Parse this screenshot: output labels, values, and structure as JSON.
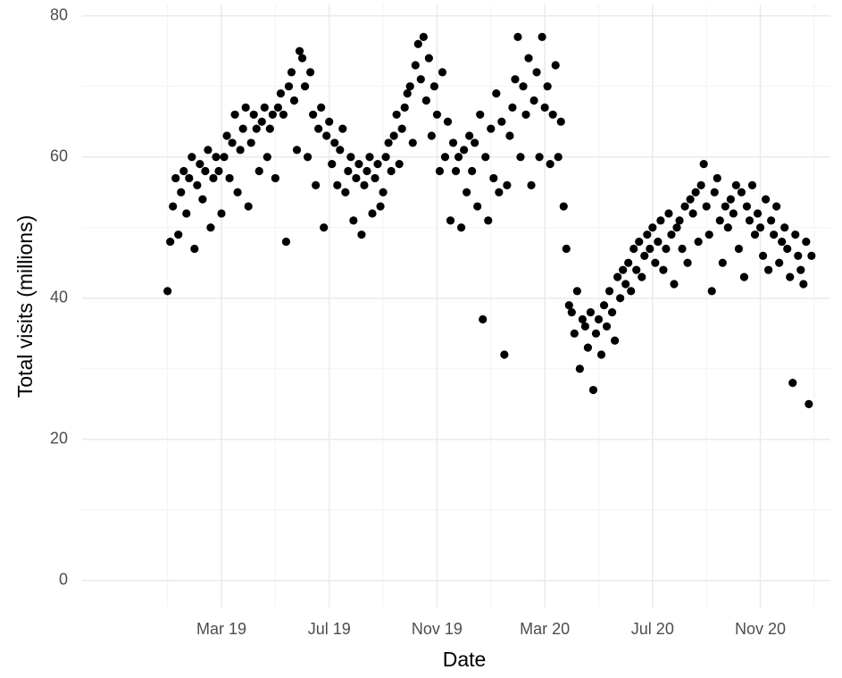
{
  "chart_data": {
    "type": "scatter",
    "x_label": "Date",
    "y_label": "Total visits (millions)",
    "xlim": [
      -3.17,
      24.6
    ],
    "ylim": [
      -3.8,
      81.6
    ],
    "xticks": [
      {
        "value": 2,
        "label": "Mar 19"
      },
      {
        "value": 6,
        "label": "Jul 19"
      },
      {
        "value": 10,
        "label": "Nov 19"
      },
      {
        "value": 14,
        "label": "Mar 20"
      },
      {
        "value": 18,
        "label": "Jul 20"
      },
      {
        "value": 22,
        "label": "Nov 20"
      }
    ],
    "xminorticks": [
      0,
      4,
      8,
      12,
      16,
      20,
      24
    ],
    "yticks": [
      0,
      20,
      40,
      60,
      80
    ],
    "yminorticks": [
      10,
      30,
      50,
      70
    ],
    "grid": true,
    "color": "#000000",
    "x": [
      0.0,
      0.1,
      0.2,
      0.3,
      0.4,
      0.5,
      0.6,
      0.7,
      0.8,
      0.9,
      1.0,
      1.1,
      1.2,
      1.3,
      1.4,
      1.5,
      1.6,
      1.7,
      1.8,
      1.9,
      2.0,
      2.1,
      2.2,
      2.3,
      2.4,
      2.5,
      2.6,
      2.7,
      2.8,
      2.9,
      3.0,
      3.1,
      3.2,
      3.3,
      3.4,
      3.5,
      3.6,
      3.7,
      3.8,
      3.9,
      4.0,
      4.1,
      4.2,
      4.3,
      4.4,
      4.5,
      4.6,
      4.7,
      4.8,
      4.9,
      5.0,
      5.1,
      5.2,
      5.3,
      5.4,
      5.5,
      5.6,
      5.7,
      5.8,
      5.9,
      6.0,
      6.1,
      6.2,
      6.3,
      6.4,
      6.5,
      6.6,
      6.7,
      6.8,
      6.9,
      7.0,
      7.1,
      7.2,
      7.3,
      7.4,
      7.5,
      7.6,
      7.7,
      7.8,
      7.9,
      8.0,
      8.1,
      8.2,
      8.3,
      8.4,
      8.5,
      8.6,
      8.7,
      8.8,
      8.9,
      9.0,
      9.1,
      9.2,
      9.3,
      9.4,
      9.5,
      9.6,
      9.7,
      9.8,
      9.9,
      10.0,
      10.1,
      10.2,
      10.3,
      10.4,
      10.5,
      10.6,
      10.7,
      10.8,
      10.9,
      11.0,
      11.1,
      11.2,
      11.3,
      11.4,
      11.5,
      11.6,
      11.7,
      11.8,
      11.9,
      12.0,
      12.1,
      12.2,
      12.3,
      12.4,
      12.5,
      12.6,
      12.7,
      12.8,
      12.9,
      13.0,
      13.1,
      13.2,
      13.3,
      13.4,
      13.5,
      13.6,
      13.7,
      13.8,
      13.9,
      14.0,
      14.1,
      14.2,
      14.3,
      14.4,
      14.5,
      14.6,
      14.7,
      14.8,
      14.9,
      15.0,
      15.1,
      15.2,
      15.3,
      15.4,
      15.5,
      15.6,
      15.7,
      15.8,
      15.9,
      16.0,
      16.1,
      16.2,
      16.3,
      16.4,
      16.5,
      16.6,
      16.7,
      16.8,
      16.9,
      17.0,
      17.1,
      17.2,
      17.3,
      17.4,
      17.5,
      17.6,
      17.7,
      17.8,
      17.9,
      18.0,
      18.1,
      18.2,
      18.3,
      18.4,
      18.5,
      18.6,
      18.7,
      18.8,
      18.9,
      19.0,
      19.1,
      19.2,
      19.3,
      19.4,
      19.5,
      19.6,
      19.7,
      19.8,
      19.9,
      20.0,
      20.1,
      20.2,
      20.3,
      20.4,
      20.5,
      20.6,
      20.7,
      20.8,
      20.9,
      21.0,
      21.1,
      21.2,
      21.3,
      21.4,
      21.5,
      21.6,
      21.7,
      21.8,
      21.9,
      22.0,
      22.1,
      22.2,
      22.3,
      22.4,
      22.5,
      22.6,
      22.7,
      22.8,
      22.9,
      23.0,
      23.1,
      23.2,
      23.3,
      23.4,
      23.5,
      23.6,
      23.7,
      23.8,
      23.9
    ],
    "values": [
      41,
      48,
      53,
      57,
      49,
      55,
      58,
      52,
      57,
      60,
      47,
      56,
      59,
      54,
      58,
      61,
      50,
      57,
      60,
      58,
      52,
      60,
      63,
      57,
      62,
      66,
      55,
      61,
      64,
      67,
      53,
      62,
      66,
      64,
      58,
      65,
      67,
      60,
      64,
      66,
      57,
      67,
      69,
      66,
      48,
      70,
      72,
      68,
      61,
      75,
      74,
      70,
      60,
      72,
      66,
      56,
      64,
      67,
      50,
      63,
      65,
      59,
      62,
      56,
      61,
      64,
      55,
      58,
      60,
      51,
      57,
      59,
      49,
      56,
      58,
      60,
      52,
      57,
      59,
      53,
      55,
      60,
      62,
      58,
      63,
      66,
      59,
      64,
      67,
      69,
      70,
      62,
      73,
      76,
      71,
      77,
      68,
      74,
      63,
      70,
      66,
      58,
      72,
      60,
      65,
      51,
      62,
      58,
      60,
      50,
      61,
      55,
      63,
      58,
      62,
      53,
      66,
      37,
      60,
      51,
      64,
      57,
      69,
      55,
      65,
      32,
      56,
      63,
      67,
      71,
      77,
      60,
      70,
      66,
      74,
      56,
      68,
      72,
      60,
      77,
      67,
      70,
      59,
      66,
      73,
      60,
      65,
      53,
      47,
      39,
      38,
      35,
      41,
      30,
      37,
      36,
      33,
      38,
      27,
      35,
      37,
      32,
      39,
      36,
      41,
      38,
      34,
      43,
      40,
      44,
      42,
      45,
      41,
      47,
      44,
      48,
      43,
      46,
      49,
      47,
      50,
      45,
      48,
      51,
      44,
      47,
      52,
      49,
      42,
      50,
      51,
      47,
      53,
      45,
      54,
      52,
      55,
      48,
      56,
      59,
      53,
      49,
      41,
      55,
      57,
      51,
      45,
      53,
      50,
      54,
      52,
      56,
      47,
      55,
      43,
      53,
      51,
      56,
      49,
      52,
      50,
      46,
      54,
      44,
      51,
      49,
      53,
      45,
      48,
      50,
      47,
      43,
      28,
      49,
      46,
      44,
      42,
      48,
      25,
      46
    ]
  }
}
